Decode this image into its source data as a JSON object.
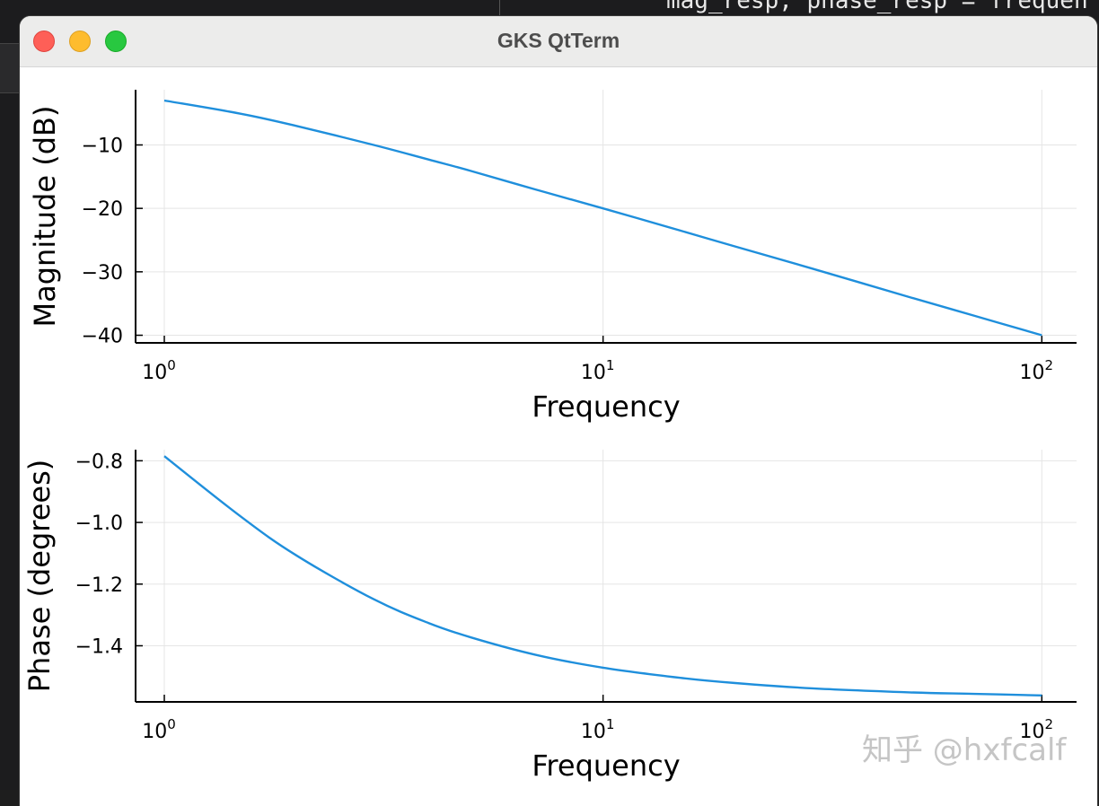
{
  "background_terminal": {
    "code_line": "mag_resp, phase_resp = frequen"
  },
  "window": {
    "title": "GKS QtTerm",
    "traffic_lights": [
      "close",
      "minimize",
      "zoom"
    ]
  },
  "watermark": {
    "text": "知乎 @hxfcalf"
  },
  "colors": {
    "series": "#1f8fdc",
    "axis": "#000000",
    "grid": "#e5e5e5"
  },
  "chart_data": [
    {
      "type": "line",
      "xscale": "log",
      "xlim": [
        0.86,
        120
      ],
      "ylim": [
        -41.2,
        -1.3
      ],
      "xlabel": "Frequency",
      "ylabel": "Magnitude (dB)",
      "grid": true,
      "x_ticks": [
        1,
        10,
        100
      ],
      "x_tick_labels": [
        {
          "base": "10",
          "exp": "0"
        },
        {
          "base": "10",
          "exp": "1"
        },
        {
          "base": "10",
          "exp": "2"
        }
      ],
      "y_ticks": [
        -10,
        -20,
        -30,
        -40
      ],
      "y_tick_labels": [
        "−10",
        "−20",
        "−30",
        "−40"
      ],
      "series": [
        {
          "x": [
            1,
            1.5,
            2,
            3,
            4,
            5,
            7,
            10,
            15,
            20,
            30,
            50,
            70,
            100
          ],
          "y": [
            -3.0,
            -5.1,
            -7.0,
            -10.0,
            -12.3,
            -14.1,
            -17.0,
            -20.0,
            -23.5,
            -26.0,
            -29.5,
            -34.0,
            -36.9,
            -40.0
          ]
        }
      ]
    },
    {
      "type": "line",
      "xscale": "log",
      "xlim": [
        0.86,
        120
      ],
      "ylim": [
        -1.582,
        -0.764
      ],
      "xlabel": "Frequency",
      "ylabel": "Phase (degrees)",
      "grid": true,
      "x_ticks": [
        1,
        10,
        100
      ],
      "x_tick_labels": [
        {
          "base": "10",
          "exp": "0"
        },
        {
          "base": "10",
          "exp": "1"
        },
        {
          "base": "10",
          "exp": "2"
        }
      ],
      "y_ticks": [
        -0.8,
        -1.0,
        -1.2,
        -1.4
      ],
      "y_tick_labels": [
        "−0.8",
        "−1.0",
        "−1.2",
        "−1.4"
      ],
      "series": [
        {
          "x": [
            1,
            1.5,
            2,
            3,
            4,
            5,
            7,
            10,
            15,
            20,
            30,
            50,
            70,
            100
          ],
          "y": [
            -0.785,
            -0.983,
            -1.107,
            -1.249,
            -1.326,
            -1.373,
            -1.429,
            -1.471,
            -1.504,
            -1.521,
            -1.538,
            -1.551,
            -1.556,
            -1.561
          ]
        }
      ]
    }
  ]
}
